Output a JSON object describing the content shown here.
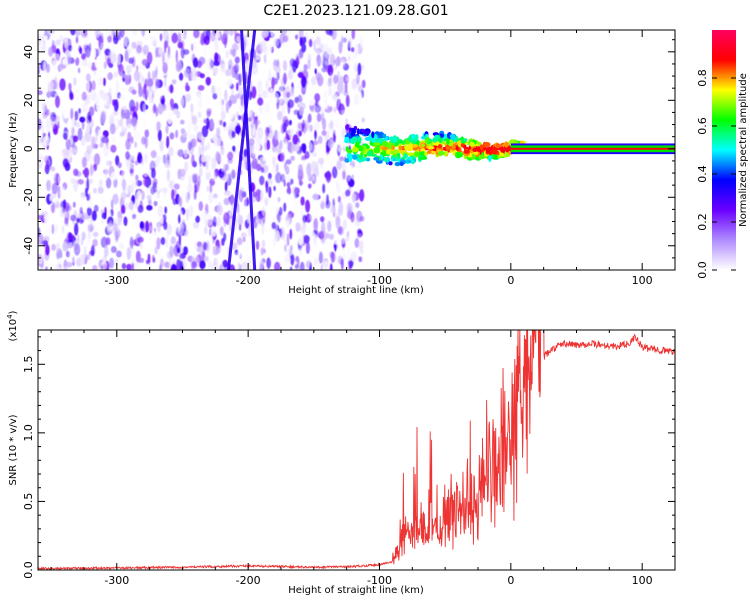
{
  "figure": {
    "title": "C2E1.2023.121.09.28.G01"
  },
  "chart_data": [
    {
      "type": "heatmap",
      "xlabel": "Height of straight line (km)",
      "ylabel": "Frequency (Hz)",
      "xlim": [
        -360,
        125
      ],
      "ylim": [
        -50,
        49
      ],
      "xticks": [
        -300,
        -200,
        -100,
        0,
        100
      ],
      "yticks": [
        -40,
        -20,
        0,
        20,
        40
      ],
      "colorbar": {
        "label": "Normalized spectral amplitude",
        "range": [
          0,
          1
        ],
        "ticks": [
          "0.0",
          "0.2",
          "0.4",
          "0.6",
          "0.8"
        ],
        "tick_values": [
          0,
          0.2,
          0.4,
          0.6,
          0.8
        ],
        "colors": [
          "#ffffff",
          "#b08cff",
          "#6a00ff",
          "#0000ff",
          "#00ffff",
          "#00ff00",
          "#ffff00",
          "#ff0000",
          "#ff0060"
        ]
      },
      "regions": [
        {
          "description": "broadband noise",
          "x": [
            -360,
            -112
          ],
          "y": [
            -50,
            49
          ],
          "amplitude": [
            0.0,
            0.25
          ]
        },
        {
          "description": "interference tracks",
          "tracks": [
            {
              "x_at_top": -195,
              "x_at_bottom": -215
            },
            {
              "x_at_top": -205,
              "x_at_bottom": -195
            }
          ]
        },
        {
          "description": "signal band onset",
          "x": [
            -125,
            10
          ],
          "y": [
            -6,
            8
          ],
          "amplitude": [
            0.2,
            0.9
          ]
        },
        {
          "description": "steady carrier line",
          "x": [
            10,
            125
          ],
          "y": [
            -1,
            1
          ],
          "amplitude": [
            0.8,
            1.0
          ]
        }
      ]
    },
    {
      "type": "line",
      "xlabel": "Height of straight line (km)",
      "ylabel": "SNR (10 * v/v)",
      "y_multiplier": "(x10",
      "y_multiplier_exp": "4",
      "y_multiplier_close": ")",
      "xlim": [
        -360,
        125
      ],
      "ylim": [
        0,
        17500
      ],
      "xticks": [
        -300,
        -200,
        -100,
        0,
        100
      ],
      "yticks": [
        0,
        5000,
        10000,
        15000
      ],
      "ytick_labels": [
        "0.0",
        "0.5",
        "1.0",
        "1.5"
      ],
      "color": "#ee3333",
      "series": [
        {
          "x": [
            -360,
            -300,
            -250,
            -200,
            -150,
            -120,
            -100,
            -90,
            -85,
            -80,
            -70,
            -60,
            -50,
            -40,
            -30,
            -20,
            -15,
            -10,
            -5,
            0,
            5,
            10,
            15,
            20,
            25,
            30,
            40,
            50,
            60,
            70,
            80,
            90,
            95,
            100,
            110,
            125
          ],
          "y": [
            100,
            150,
            200,
            300,
            200,
            250,
            400,
            600,
            1500,
            2500,
            2700,
            2800,
            3000,
            3500,
            3500,
            5000,
            6500,
            7000,
            7500,
            8500,
            9500,
            11000,
            13000,
            15000,
            15500,
            16000,
            16500,
            16400,
            16500,
            16400,
            16300,
            16500,
            17000,
            16200,
            16100,
            15900
          ]
        }
      ]
    }
  ]
}
